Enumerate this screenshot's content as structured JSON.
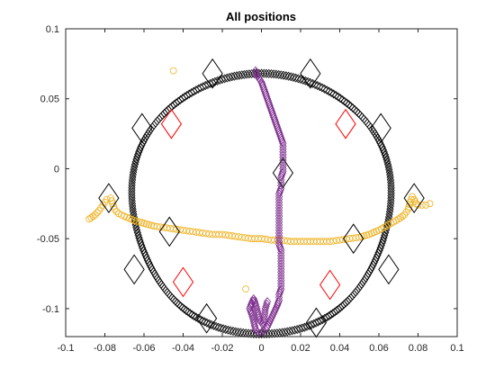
{
  "chart_data": {
    "type": "scatter",
    "title": "All positions",
    "xlabel": "",
    "ylabel": "",
    "xlim": [
      -0.1,
      0.1
    ],
    "ylim": [
      -0.12,
      0.1
    ],
    "xticks": [
      -0.1,
      -0.08,
      -0.06,
      -0.04,
      -0.02,
      0,
      0.02,
      0.04,
      0.06,
      0.08,
      0.1
    ],
    "xtick_labels": [
      "-0.1",
      "-0.08",
      "-0.06",
      "-0.04",
      "-0.02",
      "0",
      "0.02",
      "0.04",
      "0.06",
      "0.08",
      "0.1"
    ],
    "yticks": [
      -0.1,
      -0.05,
      0,
      0.05,
      0.1
    ],
    "ytick_labels": [
      "-0.1",
      "-0.05",
      "0",
      "0.05",
      "0.1"
    ],
    "grid": false,
    "legend": "none",
    "series": [
      {
        "kind": "ring",
        "marker": "diamond-small",
        "color": "#000000",
        "center": [
          0,
          -0.025
        ],
        "radius_x": 0.066,
        "radius_y": 0.095,
        "points": 320
      },
      {
        "kind": "path",
        "marker": "circle",
        "color": "#EDB120",
        "points": [
          [
            -0.088,
            -0.036
          ],
          [
            -0.085,
            -0.033
          ],
          [
            -0.083,
            -0.03
          ],
          [
            -0.081,
            -0.026
          ],
          [
            -0.079,
            -0.022
          ],
          [
            -0.077,
            -0.021
          ],
          [
            -0.076,
            -0.025
          ],
          [
            -0.075,
            -0.029
          ],
          [
            -0.073,
            -0.032
          ],
          [
            -0.07,
            -0.034
          ],
          [
            -0.065,
            -0.037
          ],
          [
            -0.06,
            -0.039
          ],
          [
            -0.055,
            -0.041
          ],
          [
            -0.05,
            -0.042
          ],
          [
            -0.045,
            -0.043
          ],
          [
            -0.04,
            -0.044
          ],
          [
            -0.035,
            -0.045
          ],
          [
            -0.03,
            -0.046
          ],
          [
            -0.025,
            -0.047
          ],
          [
            -0.02,
            -0.047
          ],
          [
            -0.015,
            -0.048
          ],
          [
            -0.01,
            -0.049
          ],
          [
            -0.005,
            -0.05
          ],
          [
            0,
            -0.05
          ],
          [
            0.005,
            -0.051
          ],
          [
            0.01,
            -0.051
          ],
          [
            0.015,
            -0.052
          ],
          [
            0.02,
            -0.052
          ],
          [
            0.025,
            -0.052
          ],
          [
            0.03,
            -0.052
          ],
          [
            0.035,
            -0.052
          ],
          [
            0.04,
            -0.051
          ],
          [
            0.045,
            -0.05
          ],
          [
            0.05,
            -0.049
          ],
          [
            0.055,
            -0.047
          ],
          [
            0.06,
            -0.044
          ],
          [
            0.065,
            -0.04
          ],
          [
            0.07,
            -0.036
          ],
          [
            0.073,
            -0.033
          ],
          [
            0.075,
            -0.029
          ],
          [
            0.076,
            -0.024
          ],
          [
            0.077,
            -0.02
          ],
          [
            0.078,
            -0.022
          ],
          [
            0.079,
            -0.025
          ],
          [
            0.08,
            -0.026
          ],
          [
            0.082,
            -0.026
          ],
          [
            0.084,
            -0.026
          ],
          [
            0.086,
            -0.025
          ]
        ]
      },
      {
        "kind": "path",
        "marker": "diamond-small",
        "color": "#7E2F8E",
        "points": [
          [
            -0.003,
            0.07
          ],
          [
            -0.002,
            0.066
          ],
          [
            0,
            0.062
          ],
          [
            0.001,
            0.058
          ],
          [
            0.002,
            0.054
          ],
          [
            0.003,
            0.05
          ],
          [
            0.004,
            0.046
          ],
          [
            0.005,
            0.042
          ],
          [
            0.006,
            0.038
          ],
          [
            0.007,
            0.034
          ],
          [
            0.008,
            0.03
          ],
          [
            0.009,
            0.026
          ],
          [
            0.01,
            0.022
          ],
          [
            0.011,
            0.018
          ],
          [
            0.011,
            0.014
          ],
          [
            0.011,
            0.01
          ],
          [
            0.011,
            0.006
          ],
          [
            0.011,
            0.002
          ],
          [
            0.011,
            -0.002
          ],
          [
            0.01,
            -0.006
          ],
          [
            0.01,
            -0.01
          ],
          [
            0.01,
            -0.014
          ],
          [
            0.009,
            -0.018
          ],
          [
            0.009,
            -0.022
          ],
          [
            0.009,
            -0.026
          ],
          [
            0.009,
            -0.03
          ],
          [
            0.009,
            -0.034
          ],
          [
            0.009,
            -0.038
          ],
          [
            0.009,
            -0.042
          ],
          [
            0.009,
            -0.046
          ],
          [
            0.009,
            -0.05
          ],
          [
            0.009,
            -0.054
          ],
          [
            0.01,
            -0.058
          ],
          [
            0.01,
            -0.062
          ],
          [
            0.01,
            -0.066
          ],
          [
            0.01,
            -0.07
          ],
          [
            0.01,
            -0.074
          ],
          [
            0.01,
            -0.078
          ],
          [
            0.01,
            -0.082
          ],
          [
            0.01,
            -0.086
          ],
          [
            0.009,
            -0.09
          ],
          [
            0.009,
            -0.094
          ],
          [
            0.008,
            -0.098
          ],
          [
            0.007,
            -0.101
          ],
          [
            0.006,
            -0.104
          ],
          [
            0.005,
            -0.107
          ],
          [
            0.004,
            -0.11
          ],
          [
            0.003,
            -0.113
          ],
          [
            0.001,
            -0.116
          ],
          [
            -0.001,
            -0.118
          ],
          [
            -0.003,
            -0.115
          ],
          [
            -0.004,
            -0.109
          ],
          [
            -0.005,
            -0.104
          ],
          [
            -0.006,
            -0.1
          ],
          [
            -0.005,
            -0.096
          ],
          [
            -0.004,
            -0.093
          ],
          [
            -0.003,
            -0.097
          ],
          [
            -0.002,
            -0.102
          ],
          [
            -0.001,
            -0.108
          ],
          [
            0.001,
            -0.112
          ],
          [
            0.002,
            -0.1
          ],
          [
            0.003,
            -0.095
          ]
        ]
      },
      {
        "kind": "points",
        "marker": "diamond-large",
        "color": "#000000",
        "points": [
          [
            -0.025,
            0.068
          ],
          [
            0.025,
            0.068
          ],
          [
            -0.061,
            0.029
          ],
          [
            0.061,
            0.029
          ],
          [
            -0.078,
            -0.021
          ],
          [
            0.078,
            -0.021
          ],
          [
            -0.047,
            -0.045
          ],
          [
            0.047,
            -0.05
          ],
          [
            -0.065,
            -0.072
          ],
          [
            0.065,
            -0.072
          ],
          [
            -0.028,
            -0.107
          ],
          [
            0.028,
            -0.11
          ],
          [
            0.011,
            -0.003
          ]
        ]
      },
      {
        "kind": "points",
        "marker": "diamond-large",
        "color": "#FF0000",
        "points": [
          [
            -0.046,
            0.032
          ],
          [
            0.043,
            0.032
          ],
          [
            -0.04,
            -0.081
          ],
          [
            0.035,
            -0.083
          ]
        ]
      },
      {
        "kind": "points",
        "marker": "circle",
        "color": "#EDB120",
        "points": [
          [
            -0.045,
            0.07
          ],
          [
            -0.008,
            -0.086
          ]
        ]
      }
    ]
  }
}
